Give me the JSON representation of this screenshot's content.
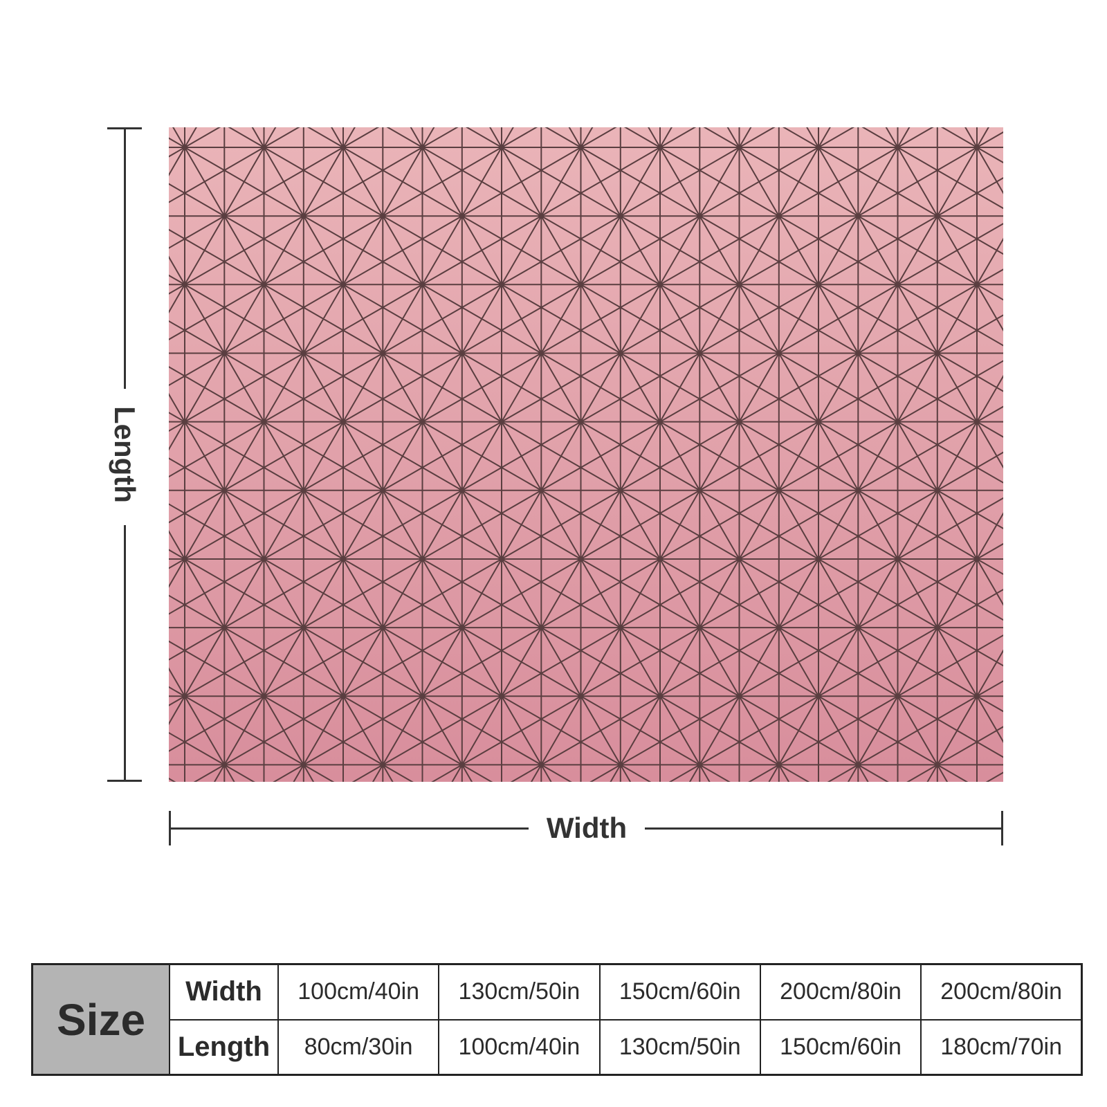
{
  "product": {
    "pattern_colors": {
      "top": "#eab4b8",
      "bottom": "#d88e9c",
      "line": "#5a3e40"
    }
  },
  "dimensions": {
    "length_label": "Length",
    "width_label": "Width"
  },
  "size_table": {
    "header": "Size",
    "rows": [
      {
        "label": "Width",
        "values": [
          "100cm/40in",
          "130cm/50in",
          "150cm/60in",
          "200cm/80in",
          "200cm/80in"
        ]
      },
      {
        "label": "Length",
        "values": [
          "80cm/30in",
          "100cm/40in",
          "130cm/50in",
          "150cm/60in",
          "180cm/70in"
        ]
      }
    ]
  }
}
